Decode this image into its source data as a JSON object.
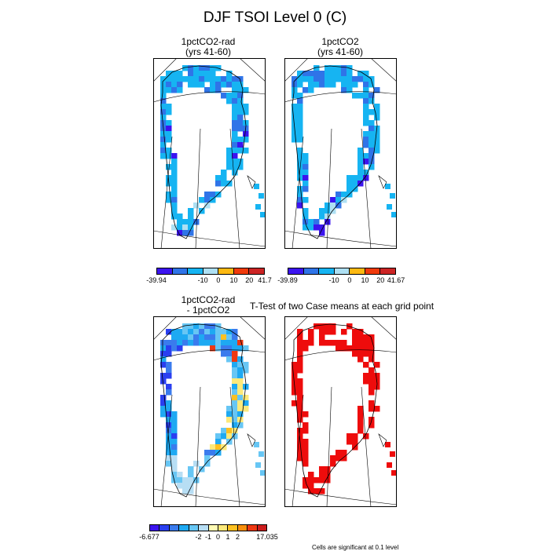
{
  "figure": {
    "title": "DJF TSOI Level 0 (C)"
  },
  "panels": {
    "p1": {
      "title_line1": "1pctCO2-rad",
      "title_line2": "(yrs 41-60)"
    },
    "p2": {
      "title_line1": "1pctCO2",
      "title_line2": "(yrs 41-60)"
    },
    "p3": {
      "title_line1": "1pctCO2-rad",
      "title_line2": "- 1pctCO2"
    },
    "p4": {
      "title_line1": "T-Test of two Case means at each grid point",
      "note": "Cells are significant at 0.1 level"
    }
  },
  "colorbars": {
    "cb1": {
      "colors": [
        "#3b14ef",
        "#2f74e8",
        "#16b4f2",
        "#aee0f3",
        "#fdb912",
        "#f03a0b",
        "#cc2424"
      ],
      "labels": [
        "-39.94",
        "-10",
        "0",
        "10",
        "20",
        "41.7"
      ]
    },
    "cb2": {
      "colors": [
        "#3b14ef",
        "#2f74e8",
        "#16b4f2",
        "#aee0f3",
        "#fdb912",
        "#f03a0b",
        "#cc2424"
      ],
      "labels": [
        "-39.89",
        "-10",
        "0",
        "10",
        "20",
        "41.67"
      ]
    },
    "cb3": {
      "colors": [
        "#3b14ef",
        "#2a3ff0",
        "#3a7bed",
        "#1ea9f2",
        "#67c6f4",
        "#b7def4",
        "#fffbb4",
        "#fde97a",
        "#fdc021",
        "#f88e0c",
        "#ee3812",
        "#cc1d1d"
      ],
      "labels": [
        "-6.677",
        "-2",
        "-1",
        "0",
        "1",
        "2",
        "17.035"
      ]
    }
  },
  "map_palette": {
    "coast": "#000000",
    "p1": {
      "main": "#16b4f2",
      "dark": "#2f74e8",
      "deep": "#3b14ef",
      "light": "#aee0f3"
    },
    "p2": {
      "main": "#16b4f2",
      "dark": "#2f74e8",
      "deep": "#3b14ef",
      "light": "#aee0f3"
    },
    "p3": {
      "blue1": "#2a3ff0",
      "blue2": "#3a7bed",
      "blue3": "#1ea9f2",
      "blue4": "#67c6f4",
      "light": "#b7def4",
      "yellow": "#fde97a",
      "orange": "#fdc021",
      "red": "#ee3812"
    },
    "p4": {
      "sig": "#ee0c0c"
    }
  }
}
